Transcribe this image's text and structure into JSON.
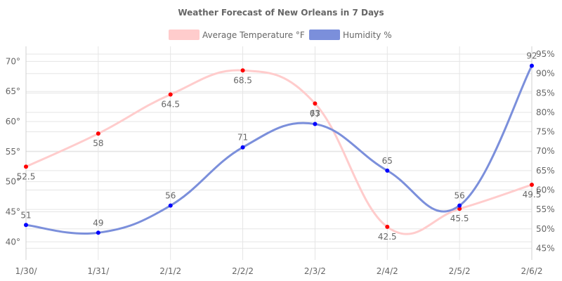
{
  "chart_data": {
    "type": "line",
    "title": "Weather Forecast of New Orleans in 7 Days",
    "categories": [
      "1/30/",
      "1/31/",
      "2/1/2",
      "2/2/2",
      "2/3/2",
      "2/4/2",
      "2/5/2",
      "2/6/2"
    ],
    "series": [
      {
        "name": "Average Temperature °F",
        "axis": "left",
        "color": "#ffcccc",
        "point_color": "#ff0000",
        "values": [
          52.5,
          58,
          64.5,
          68.5,
          63,
          42.5,
          45.5,
          49.5
        ],
        "labels": [
          "52.5",
          "58",
          "64.5",
          "68.5",
          "63",
          "42.5",
          "45.5",
          "49.5"
        ]
      },
      {
        "name": "Humidity %",
        "axis": "right",
        "color": "#7b8fdb",
        "point_color": "#0000ff",
        "values": [
          51,
          49,
          56,
          71,
          77,
          65,
          56,
          92
        ],
        "labels": [
          "51",
          "49",
          "56",
          "71",
          "77",
          "65",
          "56",
          "92"
        ]
      }
    ],
    "y_left": {
      "ylim": [
        37,
        72.5
      ],
      "ticks": [
        40,
        45,
        50,
        55,
        60,
        65,
        70
      ],
      "tick_labels": [
        "40°",
        "45°",
        "50°",
        "55°",
        "60°",
        "65°",
        "70°"
      ]
    },
    "y_right": {
      "ylim": [
        42,
        97
      ],
      "ticks": [
        45,
        50,
        55,
        60,
        65,
        70,
        75,
        80,
        85,
        90,
        95
      ],
      "tick_labels": [
        "45%",
        "50%",
        "55%",
        "60%",
        "65%",
        "70%",
        "75%",
        "80%",
        "85%",
        "90%",
        "95%"
      ]
    },
    "grid": true,
    "legend_position": "top-center"
  }
}
